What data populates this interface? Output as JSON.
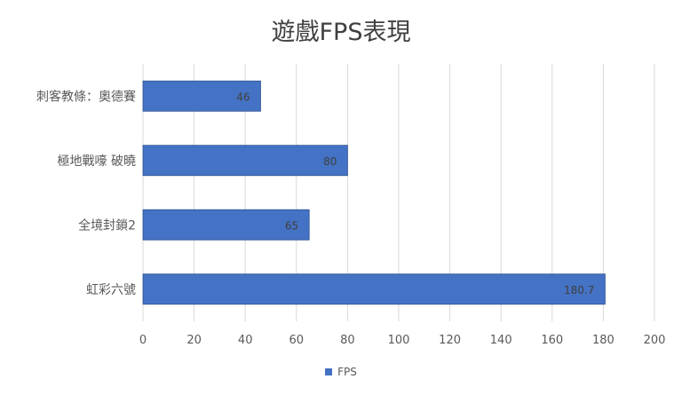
{
  "chart_data": {
    "type": "bar",
    "orientation": "horizontal",
    "title": "遊戲FPS表現",
    "categories": [
      "刺客教條：奧德賽",
      "極地戰嚎 破曉",
      "全境封鎖2",
      "虹彩六號"
    ],
    "series": [
      {
        "name": "FPS",
        "values": [
          46,
          80,
          65,
          180.7
        ],
        "color": "#4472C4"
      }
    ],
    "data_labels": [
      "46",
      "80",
      "65",
      "180.7"
    ],
    "xlim": [
      0,
      200
    ],
    "xticks": [
      0,
      20,
      40,
      60,
      80,
      100,
      120,
      140,
      160,
      180,
      200
    ],
    "grid": "vertical",
    "legend_position": "bottom"
  },
  "colors": {
    "bar": "#4472C4",
    "bar_border": "#2F528F",
    "grid": "#D9D9D9",
    "text": "#595959"
  }
}
